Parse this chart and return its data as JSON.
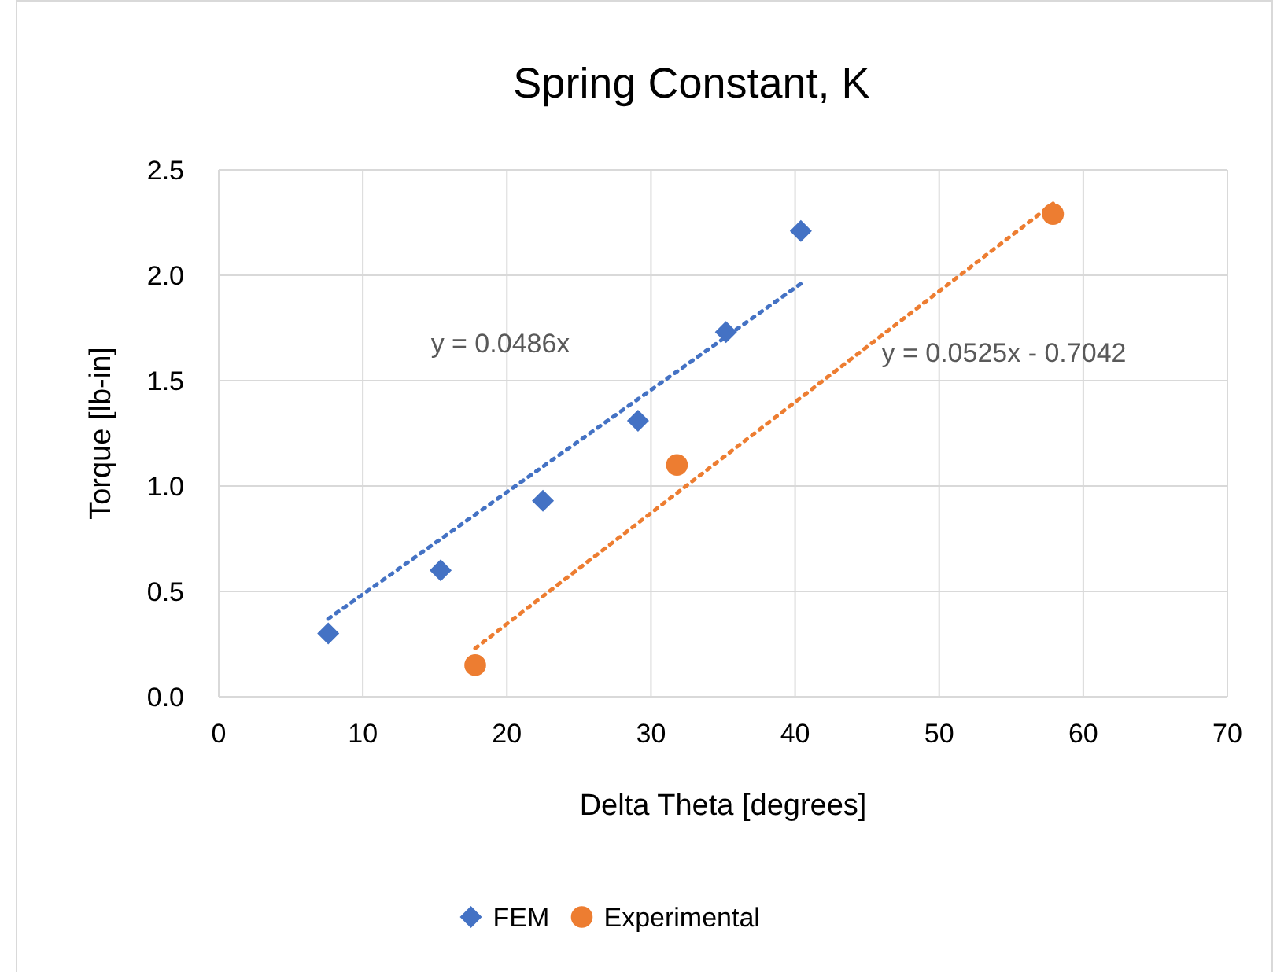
{
  "chart_data": {
    "type": "scatter",
    "title": "Spring Constant, K",
    "xlabel": "Delta Theta [degrees]",
    "ylabel": "Torque [lb-in]",
    "xlim": [
      0,
      70
    ],
    "xticks": [
      0,
      10,
      20,
      30,
      40,
      50,
      60,
      70
    ],
    "ylim": [
      0,
      2.5
    ],
    "yticks": [
      {
        "value": 0,
        "label": "0.0"
      },
      {
        "value": 0.5,
        "label": "0.5"
      },
      {
        "value": 1,
        "label": "1.0"
      },
      {
        "value": 1.5,
        "label": "1.5"
      },
      {
        "value": 2,
        "label": "2.0"
      },
      {
        "value": 2.5,
        "label": "2.5"
      }
    ],
    "grid": true,
    "legend": "bottom",
    "series": [
      {
        "name": "FEM",
        "color": "#4472c4",
        "marker": "diamond",
        "x": [
          7.6,
          15.4,
          22.5,
          29.1,
          35.2,
          40.4
        ],
        "values": [
          0.3,
          0.6,
          0.93,
          1.31,
          1.73,
          2.21
        ]
      },
      {
        "name": "Experimental",
        "color": "#ed7d31",
        "marker": "circle",
        "x": [
          17.8,
          31.8,
          57.9
        ],
        "values": [
          0.15,
          1.1,
          2.29
        ]
      },
      {
        "type": "line",
        "color": "#4472c4",
        "line_style": "dotted",
        "x": [
          7.6,
          40.4
        ],
        "values": [
          0.37,
          1.96
        ]
      },
      {
        "type": "line",
        "color": "#ed7d31",
        "line_style": "dotted",
        "x": [
          17.8,
          57.9
        ],
        "values": [
          0.23,
          2.34
        ]
      }
    ],
    "annotations": [
      "y = 0.0486x",
      "y = 0.0525x - 0.7042"
    ]
  }
}
